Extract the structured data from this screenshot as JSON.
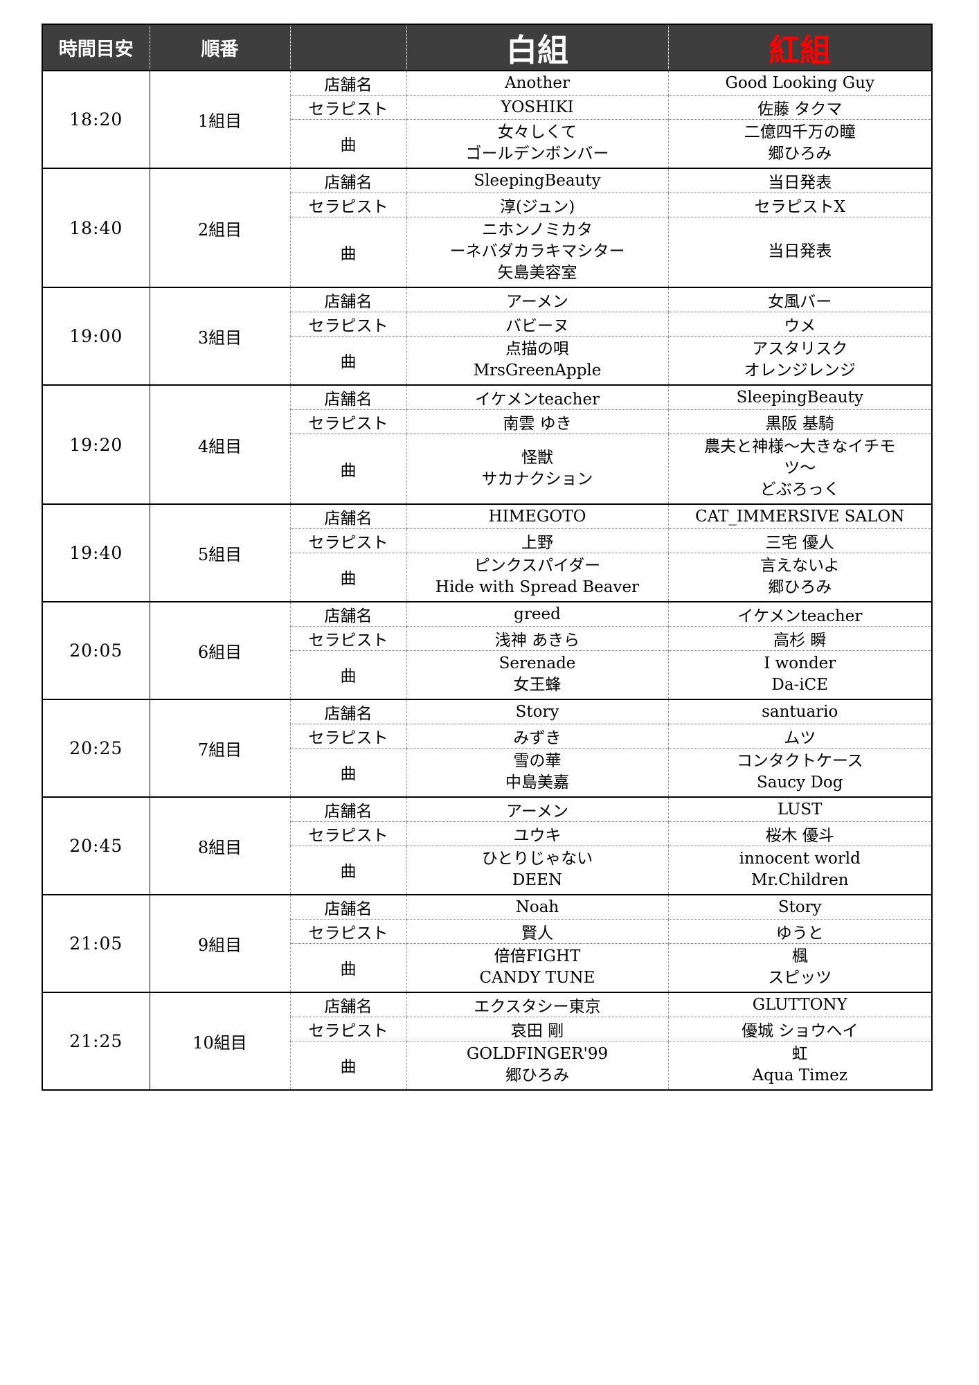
{
  "header": {
    "time_label": "時間目安",
    "order_label": "順番",
    "white_team_label": "白組",
    "red_team_label": "紅組",
    "bg_color": "#3e3e3e",
    "white_team_color": "#ffffff",
    "red_team_color": "#ff0000"
  },
  "row_labels": {
    "shop": "店舗名",
    "therapist": "セラピスト",
    "song": "曲"
  },
  "groups": [
    {
      "time": "18:20",
      "order": "1組目",
      "white": {
        "shop": "Another",
        "therapist": "YOSHIKI",
        "song_lines": [
          "女々しくて",
          "ゴールデンボンバー"
        ]
      },
      "red": {
        "shop": "Good Looking Guy",
        "therapist": "佐藤 タクマ",
        "song_lines": [
          "二億四千万の瞳",
          "郷ひろみ"
        ]
      }
    },
    {
      "time": "18:40",
      "order": "2組目",
      "white": {
        "shop": "SleepingBeauty",
        "therapist": "淳(ジュン)",
        "song_lines": [
          "ニホンノミカタ",
          "ーネバダカラキマシター",
          "矢島美容室"
        ]
      },
      "red": {
        "shop": "当日発表",
        "therapist": "セラピストX",
        "song_lines": [
          "当日発表"
        ]
      }
    },
    {
      "time": "19:00",
      "order": "3組目",
      "white": {
        "shop": "アーメン",
        "therapist": "バビーヌ",
        "song_lines": [
          "点描の唄",
          "MrsGreenApple"
        ]
      },
      "red": {
        "shop": "女風バー",
        "therapist": "ウメ",
        "song_lines": [
          "アスタリスク",
          "オレンジレンジ"
        ]
      }
    },
    {
      "time": "19:20",
      "order": "4組目",
      "white": {
        "shop": "イケメンteacher",
        "therapist": "南雲 ゆき",
        "song_lines": [
          "怪獣",
          "サカナクション"
        ]
      },
      "red": {
        "shop": "SleepingBeauty",
        "therapist": "黒阪 基騎",
        "song_lines": [
          "農夫と神様〜大きなイチモ",
          "ツ〜",
          "どぶろっく"
        ]
      }
    },
    {
      "time": "19:40",
      "order": "5組目",
      "white": {
        "shop": "HIMEGOTO",
        "therapist": "上野",
        "song_lines": [
          "ピンクスパイダー",
          "Hide with Spread Beaver"
        ]
      },
      "red": {
        "shop": "CAT_IMMERSIVE SALON",
        "therapist": "三宅 優人",
        "song_lines": [
          "言えないよ",
          "郷ひろみ"
        ]
      }
    },
    {
      "time": "20:05",
      "order": "6組目",
      "white": {
        "shop": "greed",
        "therapist": "浅神 あきら",
        "song_lines": [
          "Serenade",
          "女王蜂"
        ]
      },
      "red": {
        "shop": "イケメンteacher",
        "therapist": "高杉 瞬",
        "song_lines": [
          "I wonder",
          "Da-iCE"
        ]
      }
    },
    {
      "time": "20:25",
      "order": "7組目",
      "white": {
        "shop": "Story",
        "therapist": "みずき",
        "song_lines": [
          "雪の華",
          "中島美嘉"
        ]
      },
      "red": {
        "shop": "santuario",
        "therapist": "ムツ",
        "song_lines": [
          "コンタクトケース",
          "Saucy Dog"
        ]
      }
    },
    {
      "time": "20:45",
      "order": "8組目",
      "white": {
        "shop": "アーメン",
        "therapist": "ユウキ",
        "song_lines": [
          "ひとりじゃない",
          "DEEN"
        ]
      },
      "red": {
        "shop": "LUST",
        "therapist": "桜木 優斗",
        "song_lines": [
          "innocent world",
          "Mr.Children"
        ]
      }
    },
    {
      "time": "21:05",
      "order": "9組目",
      "white": {
        "shop": "Noah",
        "therapist": "賢人",
        "song_lines": [
          "倍倍FIGHT",
          "CANDY TUNE"
        ]
      },
      "red": {
        "shop": "Story",
        "therapist": "ゆうと",
        "song_lines": [
          "楓",
          "スピッツ"
        ]
      }
    },
    {
      "time": "21:25",
      "order": "10組目",
      "white": {
        "shop": "エクスタシー東京",
        "therapist": "哀田 剛",
        "song_lines": [
          "GOLDFINGER'99",
          "郷ひろみ"
        ]
      },
      "red": {
        "shop": "GLUTTONY",
        "therapist": "優城 ショウヘイ",
        "song_lines": [
          "虹",
          "Aqua Timez"
        ]
      }
    }
  ]
}
